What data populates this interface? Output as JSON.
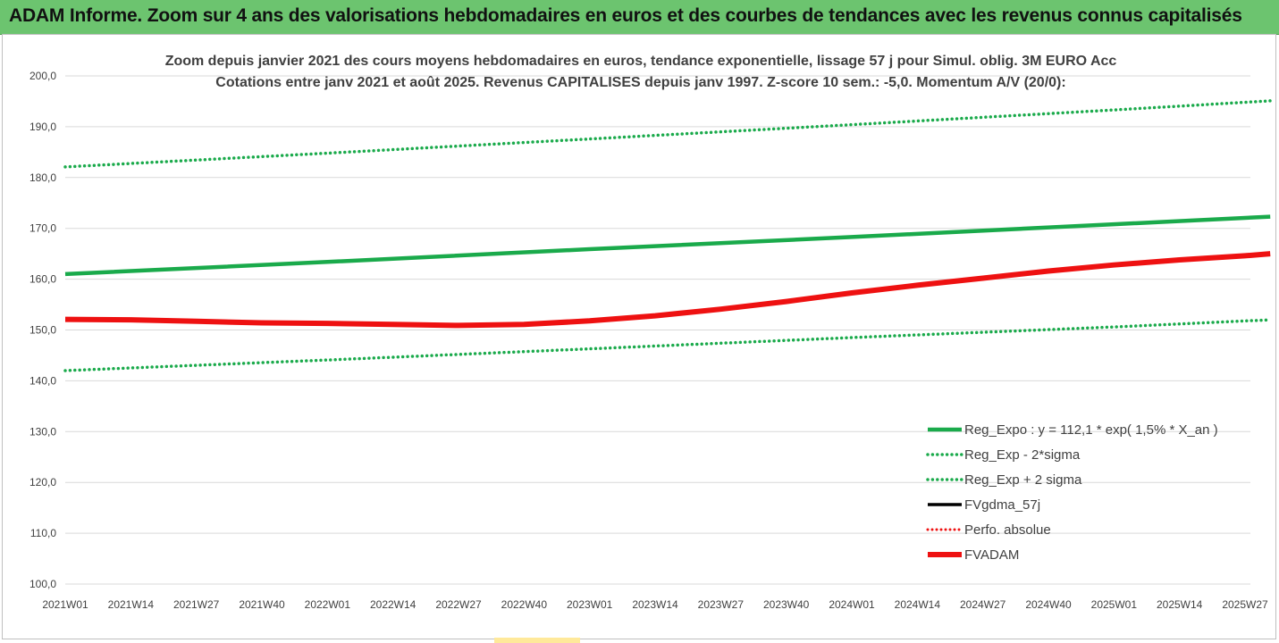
{
  "banner": {
    "text": "ADAM Informe. Zoom sur 4 ans des valorisations hebdomadaires en euros et des courbes de tendances avec les revenus connus capitalisés"
  },
  "colors": {
    "banner_bg": "#6cc46f",
    "trend": "#1aaa4b",
    "series_red": "#ee1111",
    "series_black": "#000000",
    "grid": "#d9d9d9"
  },
  "chart_data": {
    "type": "line",
    "title": [
      "Zoom depuis janvier 2021 des cours moyens hebdomadaires en euros, tendance exponentielle, lissage 57 j pour Simul. oblig. 3M EURO Acc",
      "Cotations entre janv 2021 et août 2025.  Revenus CAPITALISES depuis janv 1997. Z-score 10 sem.: -5,0. Momentum A/V (20/0):"
    ],
    "x_ticks": [
      "2021W01",
      "2021W14",
      "2021W27",
      "2021W40",
      "2022W01",
      "2022W14",
      "2022W27",
      "2022W40",
      "2023W01",
      "2023W14",
      "2023W27",
      "2023W40",
      "2024W01",
      "2024W14",
      "2024W27",
      "2024W40",
      "2025W01",
      "2025W14",
      "2025W27"
    ],
    "y_ticks": [
      "100,0",
      "110,0",
      "120,0",
      "130,0",
      "140,0",
      "150,0",
      "160,0",
      "170,0",
      "180,0",
      "190,0",
      "200,0"
    ],
    "ylim": [
      100,
      200
    ],
    "grid": "horizontal",
    "legend_position": "bottom-right",
    "series": [
      {
        "name": "Reg_Expo : y = 112,1 * exp( 1,5% *  X_an )",
        "style": "solid-green",
        "x": [
          "2021W01",
          "2022W01",
          "2023W01",
          "2024W01",
          "2025W01",
          "2025W32"
        ],
        "values": [
          161.0,
          163.4,
          165.9,
          168.3,
          170.8,
          172.3
        ]
      },
      {
        "name": "Reg_Exp - 2*sigma",
        "style": "dotted-green",
        "x": [
          "2021W01",
          "2022W01",
          "2023W01",
          "2024W01",
          "2025W01",
          "2025W32"
        ],
        "values": [
          142.0,
          144.1,
          146.3,
          148.5,
          150.6,
          152.0
        ]
      },
      {
        "name": "Reg_Exp + 2 sigma",
        "style": "dotted-green",
        "x": [
          "2021W01",
          "2022W01",
          "2023W01",
          "2024W01",
          "2025W01",
          "2025W32"
        ],
        "values": [
          182.1,
          184.8,
          187.6,
          190.4,
          193.3,
          195.1
        ]
      },
      {
        "name": "FVgdma_57j",
        "style": "solid-black",
        "x": [],
        "values": []
      },
      {
        "name": "Perfo. absolue",
        "style": "dotted-red",
        "x": [],
        "values": []
      },
      {
        "name": "FVADAM",
        "style": "solid-red",
        "x": [
          "2021W01",
          "2021W14",
          "2021W27",
          "2021W40",
          "2022W01",
          "2022W14",
          "2022W27",
          "2022W40",
          "2023W01",
          "2023W14",
          "2023W27",
          "2023W40",
          "2024W01",
          "2024W14",
          "2024W27",
          "2024W40",
          "2025W01",
          "2025W14",
          "2025W27",
          "2025W32"
        ],
        "values": [
          152.1,
          152.0,
          151.7,
          151.4,
          151.3,
          151.1,
          150.9,
          151.1,
          151.8,
          152.8,
          154.1,
          155.6,
          157.3,
          158.8,
          160.2,
          161.6,
          162.8,
          163.8,
          164.6,
          165.0
        ]
      }
    ]
  }
}
